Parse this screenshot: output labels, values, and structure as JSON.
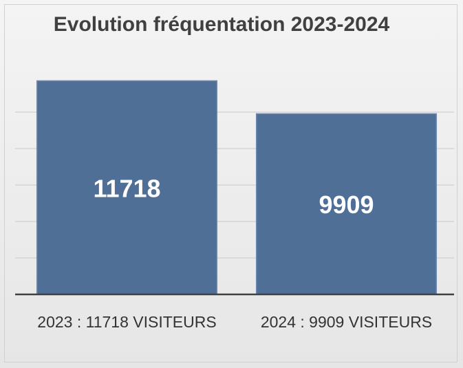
{
  "chart_data": {
    "type": "bar",
    "title": "Evolution fréquentation 2023-2024",
    "categories": [
      "2023 : 11718 VISITEURS",
      "2024 : 9909 VISITEURS"
    ],
    "values": [
      11718,
      9909
    ],
    "color": "#4f6f97",
    "ylim": [
      0,
      12000
    ],
    "yticks": [
      0,
      2000,
      4000,
      6000,
      8000,
      10000
    ],
    "grid": true
  }
}
